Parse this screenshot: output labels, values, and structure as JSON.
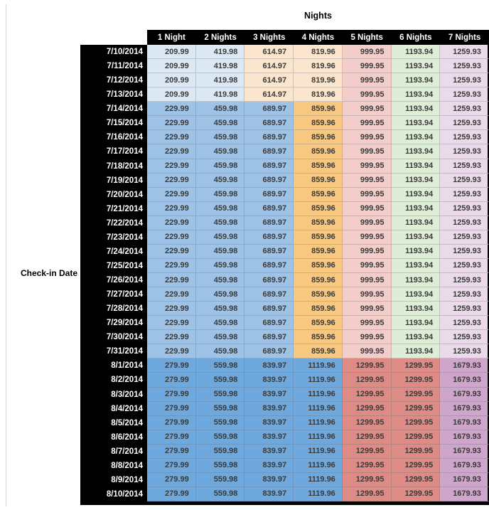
{
  "table_title": "Nights",
  "row_axis_label": "Check-in Date",
  "chart_data": {
    "type": "table",
    "title": "Nights",
    "row_header_label": "Check-in Date",
    "columns": [
      "1 Night",
      "2 Nights",
      "3 Nights",
      "4 Nights",
      "5 Nights",
      "6 Nights",
      "7 Nights"
    ],
    "rows": [
      {
        "date": "7/10/2014",
        "band": "A",
        "values": [
          209.99,
          419.98,
          614.97,
          819.96,
          999.95,
          1193.94,
          1259.93
        ]
      },
      {
        "date": "7/11/2014",
        "band": "A",
        "values": [
          209.99,
          419.98,
          614.97,
          819.96,
          999.95,
          1193.94,
          1259.93
        ]
      },
      {
        "date": "7/12/2014",
        "band": "A",
        "values": [
          209.99,
          419.98,
          614.97,
          819.96,
          999.95,
          1193.94,
          1259.93
        ]
      },
      {
        "date": "7/13/2014",
        "band": "A",
        "values": [
          209.99,
          419.98,
          614.97,
          819.96,
          999.95,
          1193.94,
          1259.93
        ]
      },
      {
        "date": "7/14/2014",
        "band": "B",
        "values": [
          229.99,
          459.98,
          689.97,
          859.96,
          999.95,
          1193.94,
          1259.93
        ]
      },
      {
        "date": "7/15/2014",
        "band": "B",
        "values": [
          229.99,
          459.98,
          689.97,
          859.96,
          999.95,
          1193.94,
          1259.93
        ]
      },
      {
        "date": "7/16/2014",
        "band": "B",
        "values": [
          229.99,
          459.98,
          689.97,
          859.96,
          999.95,
          1193.94,
          1259.93
        ]
      },
      {
        "date": "7/17/2014",
        "band": "B",
        "values": [
          229.99,
          459.98,
          689.97,
          859.96,
          999.95,
          1193.94,
          1259.93
        ]
      },
      {
        "date": "7/18/2014",
        "band": "B",
        "values": [
          229.99,
          459.98,
          689.97,
          859.96,
          999.95,
          1193.94,
          1259.93
        ]
      },
      {
        "date": "7/19/2014",
        "band": "B",
        "values": [
          229.99,
          459.98,
          689.97,
          859.96,
          999.95,
          1193.94,
          1259.93
        ]
      },
      {
        "date": "7/20/2014",
        "band": "B",
        "values": [
          229.99,
          459.98,
          689.97,
          859.96,
          999.95,
          1193.94,
          1259.93
        ]
      },
      {
        "date": "7/21/2014",
        "band": "B",
        "values": [
          229.99,
          459.98,
          689.97,
          859.96,
          999.95,
          1193.94,
          1259.93
        ]
      },
      {
        "date": "7/22/2014",
        "band": "B",
        "values": [
          229.99,
          459.98,
          689.97,
          859.96,
          999.95,
          1193.94,
          1259.93
        ]
      },
      {
        "date": "7/23/2014",
        "band": "B",
        "values": [
          229.99,
          459.98,
          689.97,
          859.96,
          999.95,
          1193.94,
          1259.93
        ]
      },
      {
        "date": "7/24/2014",
        "band": "B",
        "values": [
          229.99,
          459.98,
          689.97,
          859.96,
          999.95,
          1193.94,
          1259.93
        ]
      },
      {
        "date": "7/25/2014",
        "band": "B",
        "values": [
          229.99,
          459.98,
          689.97,
          859.96,
          999.95,
          1193.94,
          1259.93
        ]
      },
      {
        "date": "7/26/2014",
        "band": "B",
        "values": [
          229.99,
          459.98,
          689.97,
          859.96,
          999.95,
          1193.94,
          1259.93
        ]
      },
      {
        "date": "7/27/2014",
        "band": "B",
        "values": [
          229.99,
          459.98,
          689.97,
          859.96,
          999.95,
          1193.94,
          1259.93
        ]
      },
      {
        "date": "7/28/2014",
        "band": "B",
        "values": [
          229.99,
          459.98,
          689.97,
          859.96,
          999.95,
          1193.94,
          1259.93
        ]
      },
      {
        "date": "7/29/2014",
        "band": "B",
        "values": [
          229.99,
          459.98,
          689.97,
          859.96,
          999.95,
          1193.94,
          1259.93
        ]
      },
      {
        "date": "7/30/2014",
        "band": "B",
        "values": [
          229.99,
          459.98,
          689.97,
          859.96,
          999.95,
          1193.94,
          1259.93
        ]
      },
      {
        "date": "7/31/2014",
        "band": "B",
        "values": [
          229.99,
          459.98,
          689.97,
          859.96,
          999.95,
          1193.94,
          1259.93
        ]
      },
      {
        "date": "8/1/2014",
        "band": "C",
        "values": [
          279.99,
          559.98,
          839.97,
          1119.96,
          1299.95,
          1299.95,
          1679.93
        ]
      },
      {
        "date": "8/2/2014",
        "band": "C",
        "values": [
          279.99,
          559.98,
          839.97,
          1119.96,
          1299.95,
          1299.95,
          1679.93
        ]
      },
      {
        "date": "8/3/2014",
        "band": "C",
        "values": [
          279.99,
          559.98,
          839.97,
          1119.96,
          1299.95,
          1299.95,
          1679.93
        ]
      },
      {
        "date": "8/4/2014",
        "band": "C",
        "values": [
          279.99,
          559.98,
          839.97,
          1119.96,
          1299.95,
          1299.95,
          1679.93
        ]
      },
      {
        "date": "8/5/2014",
        "band": "C",
        "values": [
          279.99,
          559.98,
          839.97,
          1119.96,
          1299.95,
          1299.95,
          1679.93
        ]
      },
      {
        "date": "8/6/2014",
        "band": "C",
        "values": [
          279.99,
          559.98,
          839.97,
          1119.96,
          1299.95,
          1299.95,
          1679.93
        ]
      },
      {
        "date": "8/7/2014",
        "band": "C",
        "values": [
          279.99,
          559.98,
          839.97,
          1119.96,
          1299.95,
          1299.95,
          1679.93
        ]
      },
      {
        "date": "8/8/2014",
        "band": "C",
        "values": [
          279.99,
          559.98,
          839.97,
          1119.96,
          1299.95,
          1299.95,
          1679.93
        ]
      },
      {
        "date": "8/9/2014",
        "band": "C",
        "values": [
          279.99,
          559.98,
          839.97,
          1119.96,
          1299.95,
          1299.95,
          1679.93
        ]
      },
      {
        "date": "8/10/2014",
        "band": "C",
        "values": [
          279.99,
          559.98,
          839.97,
          1119.96,
          1299.95,
          1299.95,
          1679.93
        ]
      }
    ]
  },
  "styles": {
    "header_bg": "#000000",
    "header_text": "#ffffff",
    "value_text": "#3a3a3a",
    "palette": {
      "pale_blue": "#dce9f5",
      "med_blue": "#9fc3e7",
      "strong_blue": "#6fa8dc",
      "pale_orange": "#fbe5cd",
      "med_orange": "#f8c880",
      "pale_red": "#f2cdca",
      "med_red": "#df8b85",
      "pale_green": "#deedd6",
      "pale_pink": "#ebdae9",
      "mauve": "#d0a5cc"
    },
    "bands": {
      "A": [
        "pale_blue",
        "pale_blue",
        "pale_orange",
        "pale_orange",
        "pale_red",
        "pale_green",
        "pale_pink"
      ],
      "B": [
        "med_blue",
        "med_blue",
        "med_blue",
        "med_orange",
        "pale_red",
        "pale_green",
        "pale_pink"
      ],
      "C": [
        "strong_blue",
        "strong_blue",
        "strong_blue",
        "strong_blue",
        "med_red",
        "med_red",
        "mauve"
      ]
    }
  }
}
